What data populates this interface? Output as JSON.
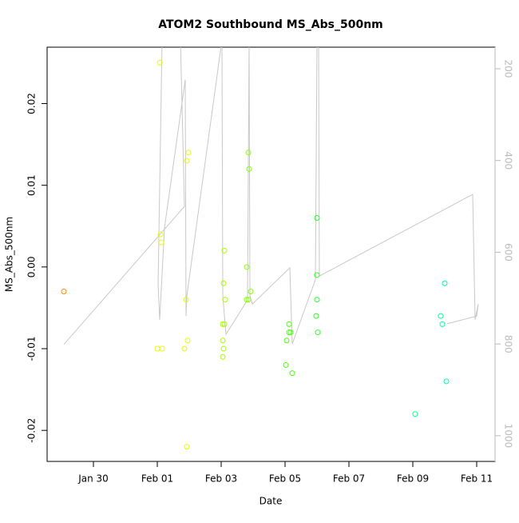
{
  "chart_data": {
    "type": "scatter",
    "title": "ATOM2 Southbound MS_Abs_500nm",
    "x_label": "Date",
    "y_label": "MS_Abs_500nm",
    "xlim": [
      28.55,
      42.575
    ],
    "xticks": [
      {
        "value": 30,
        "label": "Jan 30"
      },
      {
        "value": 32,
        "label": "Feb 01"
      },
      {
        "value": 34,
        "label": "Feb 03"
      },
      {
        "value": 36,
        "label": "Feb 05"
      },
      {
        "value": 38,
        "label": "Feb 07"
      },
      {
        "value": 40,
        "label": "Feb 09"
      },
      {
        "value": 42,
        "label": "Feb 11"
      }
    ],
    "ylim": [
      -0.0238,
      0.0269
    ],
    "yticks": [
      -0.02,
      -0.01,
      {
        "value": 0,
        "label": "0.00"
      },
      0.01,
      0.02
    ],
    "y2lim": [
      1056,
      153
    ],
    "y2ticks": [
      200,
      400,
      600,
      800,
      1000
    ],
    "x": [
      29.075,
      32.075,
      32.1,
      32.125,
      32.0,
      32.15,
      32.85,
      32.9,
      32.925,
      32.925,
      32.975,
      32.95,
      34.1,
      34.075,
      34.05,
      34.1,
      34.05,
      34.075,
      34.05,
      34.125,
      34.85,
      34.875,
      34.8,
      34.8,
      34.85,
      34.925,
      36.025,
      36.05,
      36.125,
      36.125,
      36.175,
      36.225,
      37.0,
      37.0,
      37.0,
      36.975,
      37.025,
      40.075,
      40.875,
      40.925,
      41.0,
      41.05
    ],
    "values": [
      -0.003,
      0.025,
      0.004,
      0.003,
      -0.01,
      -0.01,
      -0.01,
      -0.004,
      -0.022,
      0.013,
      0.014,
      -0.009,
      0.002,
      -0.002,
      -0.007,
      -0.007,
      -0.009,
      -0.01,
      -0.011,
      -0.004,
      0.014,
      0.012,
      0.0,
      -0.004,
      -0.004,
      -0.003,
      -0.012,
      -0.009,
      -0.007,
      -0.008,
      -0.008,
      -0.013,
      0.006,
      -0.001,
      -0.004,
      -0.006,
      -0.008,
      -0.018,
      -0.006,
      -0.007,
      -0.002,
      -0.014
    ],
    "point_colors": [
      "#ff8c00",
      "#e6ff00",
      "#e6ff00",
      "#e6ff00",
      "#e6ff00",
      "#e6ff00",
      "#e0ff00",
      "#e0ff00",
      "#e0ff00",
      "#e0ff00",
      "#e0ff00",
      "#e0ff00",
      "#a8ff00",
      "#a8ff00",
      "#a8ff00",
      "#a8ff00",
      "#a8ff00",
      "#a8ff00",
      "#a8ff00",
      "#a8ff00",
      "#8cff00",
      "#8cff00",
      "#8cff00",
      "#8cff00",
      "#8cff00",
      "#8cff00",
      "#4cff10",
      "#4cff10",
      "#4cff10",
      "#4cff10",
      "#4cff10",
      "#4cff10",
      "#28ff28",
      "#28ff28",
      "#28ff28",
      "#28ff28",
      "#28ff28",
      "#00ff90",
      "#00ffa0",
      "#00ffa0",
      "#00ffa8",
      "#00ffa8"
    ],
    "line": {
      "axis": "y2",
      "color": "#c8c8c8",
      "x": [
        29.075,
        32.85,
        32.725,
        32.15,
        32.025,
        32.075,
        32.225,
        32.875,
        32.9,
        32.925,
        34.025,
        34.05,
        34.15,
        34.825,
        34.875,
        34.9,
        34.975,
        36.15,
        36.225,
        36.95,
        37.0,
        37.05,
        37.075,
        41.875,
        41.95,
        42.05,
        42.0,
        41.075
      ],
      "values": [
        801,
        500,
        137,
        137,
        669,
        747,
        547,
        224,
        739,
        695,
        137,
        695,
        779,
        704,
        137,
        695,
        713,
        634,
        800,
        660,
        137,
        137,
        652,
        474,
        747,
        713,
        739,
        756
      ]
    }
  }
}
